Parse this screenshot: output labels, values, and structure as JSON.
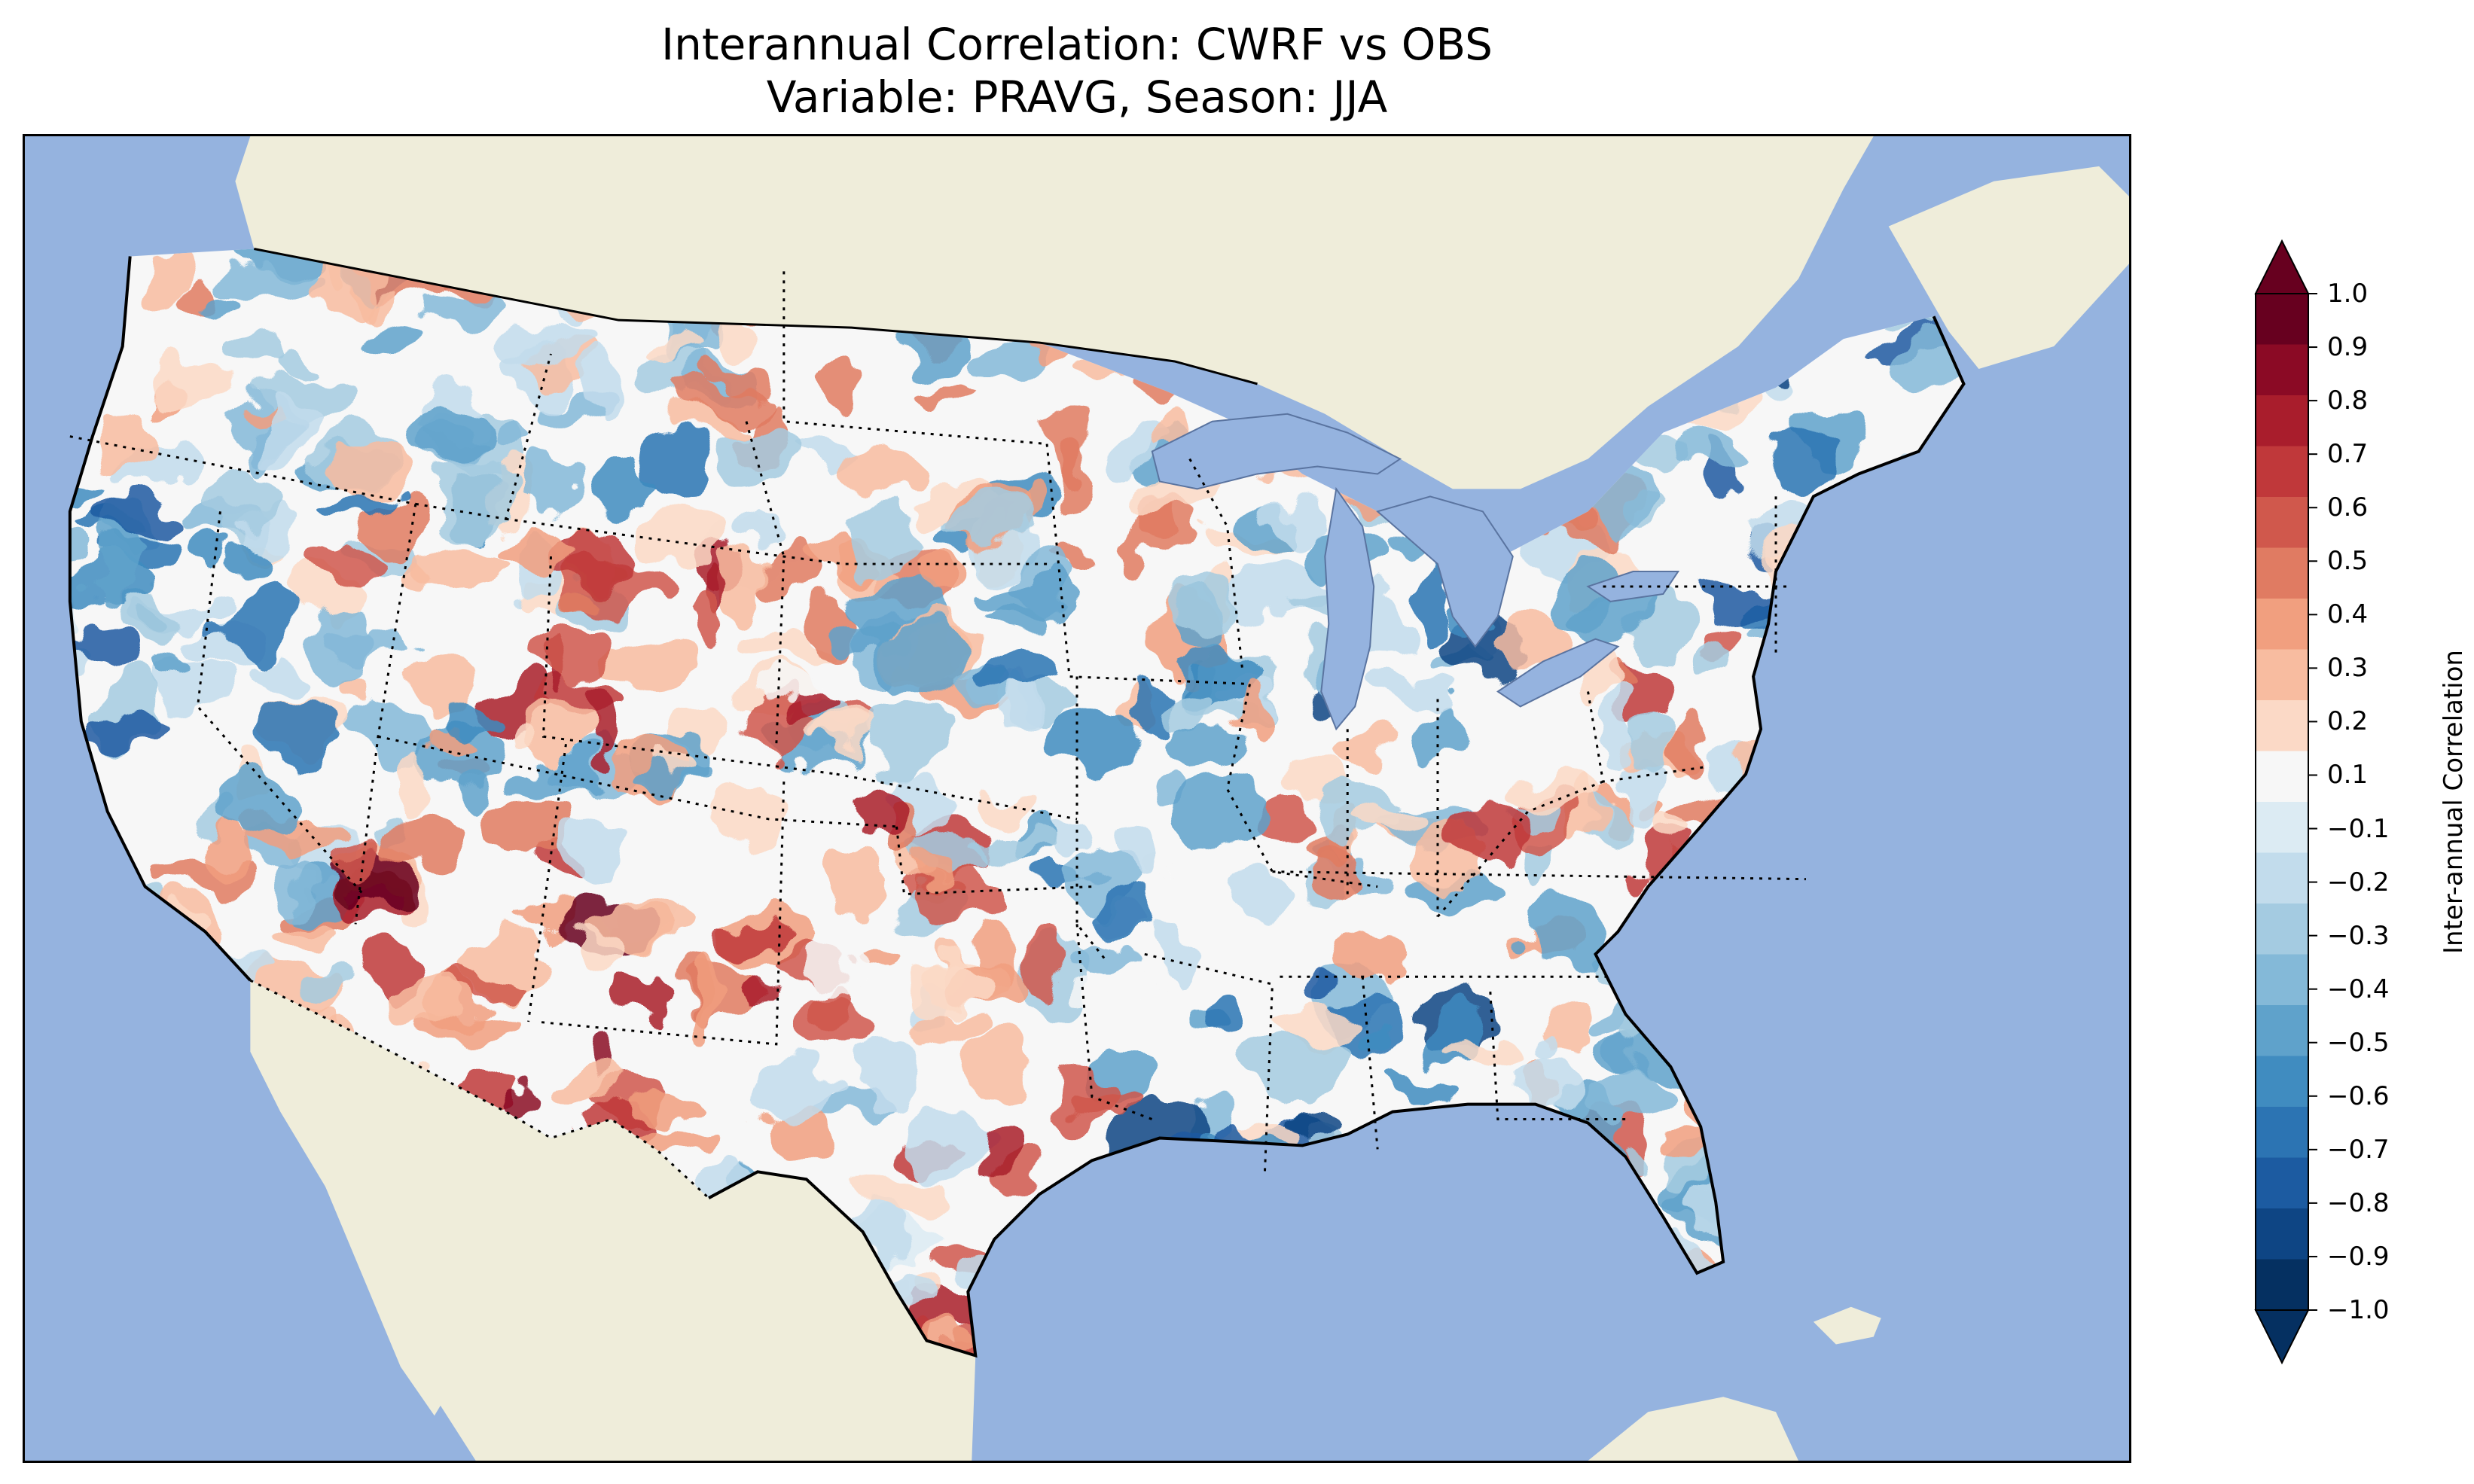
{
  "title": {
    "line1": "Interannual Correlation: CWRF vs OBS",
    "line2": "Variable: PRAVG, Season: JJA"
  },
  "colors": {
    "ocean": "#95b3df",
    "land": "#efedda",
    "lakes": "#95b3df",
    "borders": "#000000"
  },
  "colorbar": {
    "label": "Inter-annual Correlation",
    "range": [
      -1.0,
      1.0
    ],
    "extend": "both",
    "orientation": "vertical",
    "ticks": [
      "1.0",
      "0.9",
      "0.8",
      "0.7",
      "0.6",
      "0.5",
      "0.4",
      "0.3",
      "0.2",
      "0.1",
      "−0.1",
      "−0.2",
      "−0.3",
      "−0.4",
      "−0.5",
      "−0.6",
      "−0.7",
      "−0.8",
      "−0.9",
      "−1.0"
    ],
    "bins_top_to_bottom": [
      "#67001f",
      "#8b0a25",
      "#a91d2c",
      "#c0383a",
      "#d0584c",
      "#e07b62",
      "#f19f7f",
      "#f8bca0",
      "#fbd9c6",
      "#f7f7f7",
      "#dcebf3",
      "#c2dcec",
      "#a4cbe1",
      "#84b9d8",
      "#5fa2cb",
      "#408cc0",
      "#2c74b3",
      "#1c5ba1",
      "#0e4584",
      "#053061"
    ],
    "extend_colors": {
      "max": "#67001f",
      "min": "#053061"
    }
  },
  "map": {
    "projection": "Lambert Conformal",
    "region": "Contiguous United States",
    "layers": [
      "filled correlation contours",
      "state borders (dotted)",
      "country borders",
      "coastlines",
      "lakes"
    ],
    "notable_features": [
      {
        "name": "Great Lakes",
        "type": "lakes"
      },
      {
        "name": "Canada",
        "type": "land"
      },
      {
        "name": "Mexico",
        "type": "land"
      },
      {
        "name": "Gulf of Mexico",
        "type": "ocean"
      },
      {
        "name": "Atlantic Ocean",
        "type": "ocean"
      },
      {
        "name": "Pacific Ocean",
        "type": "ocean"
      }
    ]
  }
}
